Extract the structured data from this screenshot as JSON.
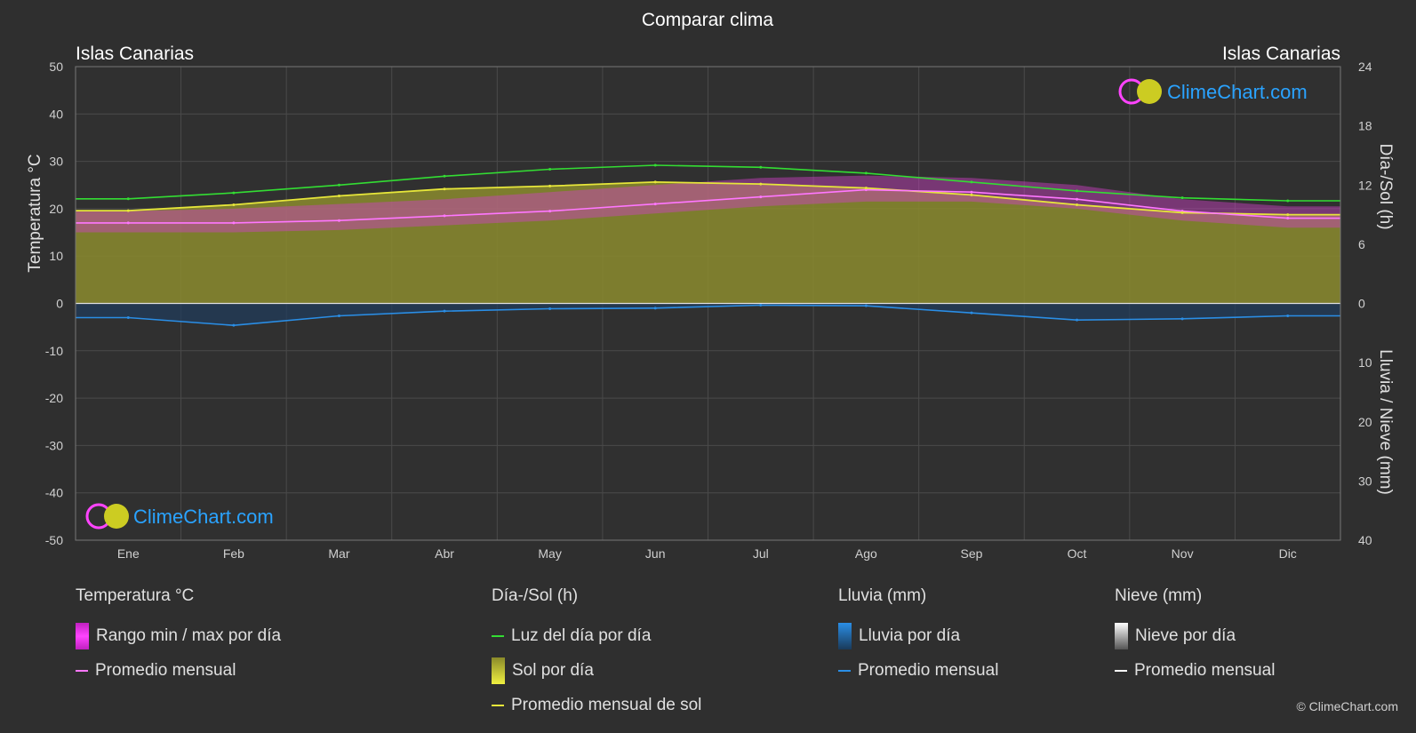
{
  "title": "Comparar clima",
  "location_left": "Islas Canarias",
  "location_right": "Islas Canarias",
  "brand": "ClimeChart.com",
  "copyright": "© ClimeChart.com",
  "chart_data": {
    "type": "line",
    "categories": [
      "Ene",
      "Feb",
      "Mar",
      "Abr",
      "May",
      "Jun",
      "Jul",
      "Ago",
      "Sep",
      "Oct",
      "Nov",
      "Dic"
    ],
    "y_left": {
      "label": "Temperatura °C",
      "range": [
        -50,
        50
      ],
      "ticks": [
        50,
        40,
        30,
        20,
        10,
        0,
        -10,
        -20,
        -30,
        -40,
        -50
      ]
    },
    "y_right_top": {
      "label": "Día-/Sol (h)",
      "range": [
        0,
        24
      ],
      "ticks": [
        24,
        18,
        12,
        6,
        0
      ]
    },
    "y_right_bottom": {
      "label": "Lluvia / Nieve (mm)",
      "range": [
        0,
        40
      ],
      "ticks": [
        10,
        20,
        30,
        40
      ]
    },
    "grid": true,
    "series": [
      {
        "name": "Luz del día por día",
        "axis": "hours",
        "color": "#33dd33",
        "values": [
          10.6,
          11.2,
          12.0,
          12.9,
          13.6,
          14.0,
          13.8,
          13.2,
          12.3,
          11.4,
          10.7,
          10.4
        ]
      },
      {
        "name": "Promedio mensual de sol",
        "axis": "hours",
        "color": "#e6e63a",
        "values": [
          9.4,
          10.0,
          10.9,
          11.6,
          11.9,
          12.3,
          12.1,
          11.7,
          11.0,
          10.0,
          9.2,
          9.0
        ]
      },
      {
        "name": "Promedio mensual",
        "group": "Temperatura °C",
        "axis": "temp",
        "color": "#ff77ff",
        "values": [
          17.0,
          17.0,
          17.5,
          18.5,
          19.5,
          21.0,
          22.5,
          24.0,
          23.5,
          22.0,
          19.5,
          18.0
        ]
      },
      {
        "name": "Rango min / max por día",
        "axis": "temp",
        "color": "#ee44ee",
        "min": [
          15.0,
          15.0,
          15.5,
          16.5,
          17.5,
          19.0,
          20.5,
          21.5,
          21.5,
          20.0,
          17.5,
          16.0
        ],
        "max": [
          19.5,
          20.0,
          21.0,
          22.0,
          23.5,
          25.0,
          26.5,
          27.0,
          26.5,
          25.0,
          22.0,
          20.5
        ]
      },
      {
        "name": "Promedio mensual",
        "group": "Lluvia (mm)",
        "axis": "rain",
        "color": "#2a8ee6",
        "values": [
          2.4,
          3.7,
          2.1,
          1.3,
          0.9,
          0.8,
          0.3,
          0.4,
          1.6,
          2.8,
          2.6,
          2.1
        ]
      }
    ]
  },
  "legend": {
    "temp": {
      "head": "Temperatura °C",
      "range": "Rango min / max por día",
      "avg": "Promedio mensual",
      "range_color": "#e040e0",
      "avg_color": "#ff77ff"
    },
    "sun": {
      "head": "Día-/Sol (h)",
      "daylight": "Luz del día por día",
      "sun": "Sol por día",
      "sun_avg": "Promedio mensual de sol",
      "daylight_color": "#33dd33",
      "sun_color": "#e6e63a",
      "sun_avg_color": "#e6e63a"
    },
    "rain": {
      "head": "Lluvia (mm)",
      "rain": "Lluvia por día",
      "avg": "Promedio mensual",
      "color": "#2a8ee6"
    },
    "snow": {
      "head": "Nieve (mm)",
      "snow": "Nieve por día",
      "avg": "Promedio mensual",
      "color": "#ffffff"
    }
  }
}
